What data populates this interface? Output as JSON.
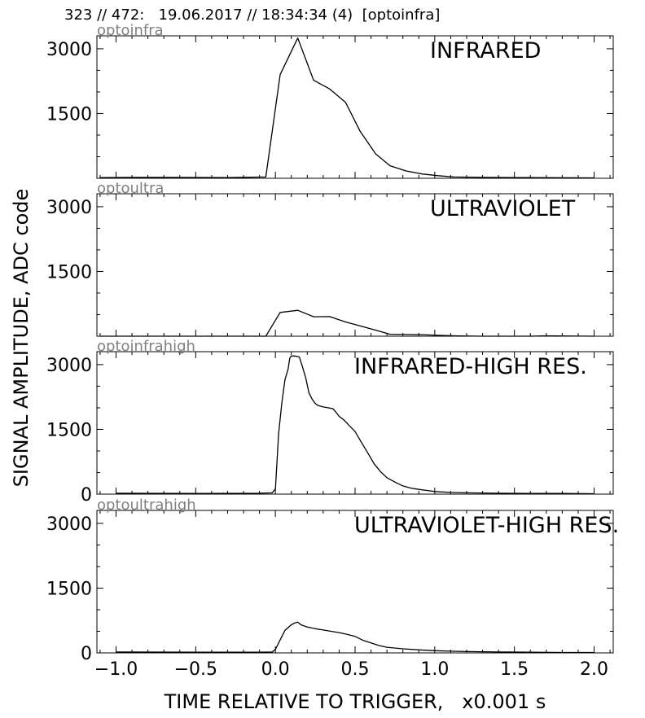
{
  "header": "323 // 472:   19.06.2017 // 18:34:34 (4)  [optoinfra]",
  "ylabel": "SIGNAL AMPLITUDE,  ADC code",
  "xlabel": "TIME RELATIVE TO TRIGGER,   x0.001 s",
  "x_ticks": [
    "−1.0",
    "−0.5",
    "0.0",
    "0.5",
    "1.0",
    "1.5",
    "2.0"
  ],
  "colors": {
    "trace": "#000000",
    "panel_name": "#808080"
  },
  "chart_data": [
    {
      "type": "line",
      "panel_name": "optoinfra",
      "title": "INFRARED",
      "xlim": [
        -1.12,
        2.12
      ],
      "ylim": [
        0,
        3300
      ],
      "yticks": [
        1500,
        3000
      ],
      "ytick_labels": [
        "1500",
        "3000"
      ],
      "x": [
        -1.1,
        -0.9,
        -0.7,
        -0.5,
        -0.3,
        -0.06,
        0.03,
        0.14,
        0.24,
        0.34,
        0.44,
        0.53,
        0.63,
        0.72,
        0.82,
        0.92,
        1.02,
        1.12,
        1.3,
        1.6,
        2.0
      ],
      "y": [
        15,
        20,
        20,
        18,
        15,
        30,
        2400,
        3250,
        2270,
        2070,
        1760,
        1100,
        560,
        290,
        170,
        100,
        60,
        30,
        20,
        15,
        10
      ]
    },
    {
      "type": "line",
      "panel_name": "optoultra",
      "title": "ULTRAVIOLET",
      "xlim": [
        -1.12,
        2.12
      ],
      "ylim": [
        0,
        3300
      ],
      "yticks": [
        1500,
        3000
      ],
      "ytick_labels": [
        "1500",
        "3000"
      ],
      "x": [
        -1.1,
        -0.9,
        -0.7,
        -0.5,
        -0.3,
        -0.06,
        0.03,
        0.14,
        0.24,
        0.34,
        0.44,
        0.53,
        0.63,
        0.72,
        0.82,
        0.92,
        1.02,
        1.12,
        1.3,
        1.6,
        1.7,
        2.0
      ],
      "y": [
        0,
        0,
        0,
        0,
        0,
        0,
        550,
        600,
        450,
        455,
        330,
        240,
        140,
        45,
        40,
        35,
        20,
        10,
        0,
        0,
        10,
        0
      ]
    },
    {
      "type": "line",
      "panel_name": "optoinfrahigh",
      "title": "INFRARED-HIGH RES.",
      "xlim": [
        -1.12,
        2.12
      ],
      "ylim": [
        0,
        3300
      ],
      "yticks": [
        0,
        1500,
        3000
      ],
      "ytick_labels": [
        "0",
        "1500",
        "3000"
      ],
      "x": [
        -1.0,
        -0.5,
        -0.1,
        -0.02,
        0.0,
        0.02,
        0.04,
        0.06,
        0.08,
        0.09,
        0.1,
        0.12,
        0.15,
        0.17,
        0.19,
        0.21,
        0.23,
        0.25,
        0.27,
        0.3,
        0.33,
        0.36,
        0.38,
        0.4,
        0.43,
        0.46,
        0.5,
        0.54,
        0.58,
        0.62,
        0.66,
        0.7,
        0.75,
        0.8,
        0.85,
        0.9,
        0.95,
        1.0,
        1.1,
        1.2,
        1.4,
        1.6,
        1.8,
        2.0
      ],
      "y": [
        20,
        15,
        20,
        30,
        120,
        1400,
        2100,
        2650,
        2900,
        3150,
        3200,
        3200,
        3180,
        2950,
        2700,
        2350,
        2200,
        2100,
        2050,
        2020,
        2000,
        1980,
        1900,
        1800,
        1720,
        1600,
        1450,
        1200,
        950,
        700,
        520,
        380,
        280,
        190,
        140,
        110,
        85,
        60,
        40,
        30,
        20,
        15,
        15,
        10
      ]
    },
    {
      "type": "line",
      "panel_name": "optoultrahigh",
      "title": "ULTRAVIOLET-HIGH RES.",
      "xlim": [
        -1.12,
        2.12
      ],
      "ylim": [
        0,
        3300
      ],
      "yticks": [
        0,
        1500,
        3000
      ],
      "ytick_labels": [
        "0",
        "1500",
        "3000"
      ],
      "x": [
        -1.0,
        -0.5,
        -0.1,
        -0.02,
        0.0,
        0.03,
        0.06,
        0.1,
        0.12,
        0.14,
        0.16,
        0.2,
        0.25,
        0.3,
        0.35,
        0.4,
        0.45,
        0.5,
        0.55,
        0.6,
        0.65,
        0.7,
        0.8,
        0.9,
        1.0,
        1.1,
        1.2,
        1.4,
        1.6,
        1.8,
        2.0
      ],
      "y": [
        20,
        15,
        15,
        20,
        80,
        300,
        520,
        650,
        690,
        710,
        650,
        600,
        560,
        530,
        500,
        470,
        430,
        380,
        290,
        230,
        170,
        130,
        95,
        70,
        50,
        40,
        30,
        20,
        15,
        10,
        10
      ]
    }
  ]
}
